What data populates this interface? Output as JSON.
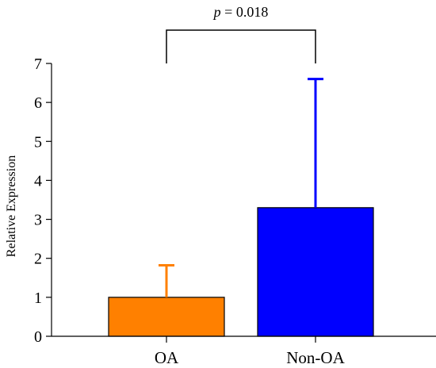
{
  "chart_data": {
    "type": "bar",
    "categories": [
      "OA",
      "Non-OA"
    ],
    "values": [
      1.0,
      3.3
    ],
    "error_upper": [
      1.82,
      6.6
    ],
    "bar_colors": [
      "#FF8000",
      "#0000FF"
    ],
    "title": "",
    "xlabel": "",
    "ylabel": "Relative Expression",
    "ylim": [
      0,
      7
    ],
    "yticks": [
      "0",
      "1",
      "2",
      "3",
      "4",
      "5",
      "6",
      "7"
    ],
    "grid": false,
    "annotation": {
      "p_symbol": "p",
      "p_rest": " = 0.018",
      "between": [
        "OA",
        "Non-OA"
      ]
    }
  }
}
